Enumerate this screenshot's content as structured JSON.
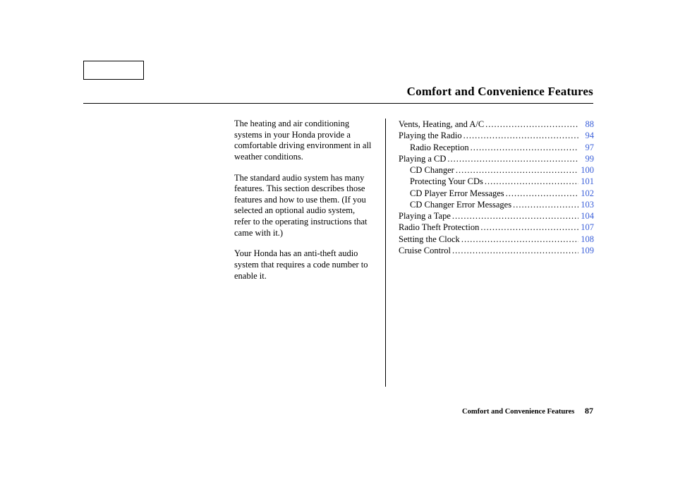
{
  "title": "Comfort and Convenience Features",
  "paragraphs": [
    "The heating and air conditioning systems in your Honda provide a comfortable driving environment in all weather conditions.",
    "The standard audio system has many features. This section de­scribes those features and how to use them. (If you selected an optional audio system, refer to the operating instructions that came with it.)",
    "Your Honda has an anti-theft audio system that requires a code number to enable it."
  ],
  "toc": [
    {
      "label": "Vents, Heating, and A/C",
      "page": "88",
      "indent": false
    },
    {
      "label": "Playing the Radio",
      "page": "94",
      "indent": false
    },
    {
      "label": "Radio Reception",
      "page": "97",
      "indent": true
    },
    {
      "label": "Playing a CD",
      "page": "99",
      "indent": false
    },
    {
      "label": "CD Changer",
      "page": "100",
      "indent": true
    },
    {
      "label": "Protecting Your CDs",
      "page": "101",
      "indent": true
    },
    {
      "label": "CD Player Error Messages",
      "page": "102",
      "indent": true
    },
    {
      "label": "CD Changer Error Messages",
      "page": "103",
      "indent": true
    },
    {
      "label": "Playing a Tape",
      "page": "104",
      "indent": false
    },
    {
      "label": "Radio Theft Protection",
      "page": "107",
      "indent": false
    },
    {
      "label": "Setting the Clock",
      "page": "108",
      "indent": false
    },
    {
      "label": "Cruise Control",
      "page": "109",
      "indent": false
    }
  ],
  "footer": {
    "section": "Comfort and Convenience Features",
    "page": "87"
  },
  "colors": {
    "link": "#3a5fd9",
    "text": "#000000",
    "background": "#ffffff"
  }
}
